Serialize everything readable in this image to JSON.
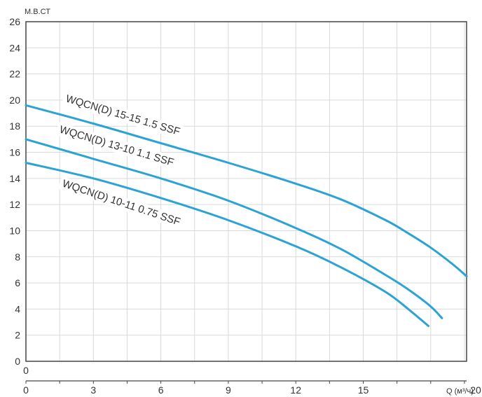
{
  "chart_data": {
    "type": "line",
    "title": "",
    "ylabel": "М.В.СТ",
    "xlabel": "Q (м³/ч)",
    "x_origin_label": "0",
    "xlim": [
      0,
      19.6
    ],
    "ylim": [
      0,
      26
    ],
    "x_ticks": [
      0,
      3,
      6,
      9,
      12,
      15,
      20
    ],
    "y_ticks": [
      0,
      2,
      4,
      6,
      8,
      10,
      12,
      14,
      16,
      18,
      20,
      22,
      24,
      26
    ],
    "grid": true,
    "line_color": "#2ba3d4",
    "series": [
      {
        "name": "WQCN(D) 15-15 1.5 SSF",
        "x": [
          0,
          3,
          6,
          9,
          12,
          14,
          16,
          17,
          18,
          19,
          19.6
        ],
        "y": [
          19.6,
          18.2,
          16.7,
          15.2,
          13.6,
          12.4,
          10.8,
          9.8,
          8.7,
          7.4,
          6.5
        ]
      },
      {
        "name": "WQCN(D) 13-10 1.1 SSF",
        "x": [
          0,
          3,
          6,
          9,
          12,
          14,
          16,
          17,
          18,
          18.5
        ],
        "y": [
          17.0,
          15.5,
          14.0,
          12.3,
          10.2,
          8.6,
          6.6,
          5.5,
          4.2,
          3.3
        ]
      },
      {
        "name": "WQCN(D) 10-11 0.75 SSF",
        "x": [
          0,
          3,
          6,
          9,
          12,
          14,
          16,
          17,
          17.9
        ],
        "y": [
          15.2,
          14.0,
          12.5,
          10.8,
          8.8,
          7.2,
          5.3,
          4.0,
          2.7
        ]
      }
    ]
  }
}
